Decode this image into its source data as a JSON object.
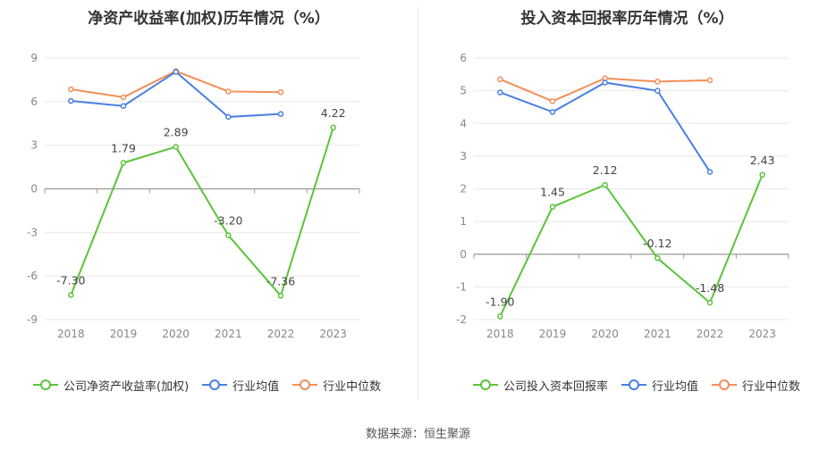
{
  "source": "数据来源：恒生聚源",
  "chart_data": [
    {
      "type": "line",
      "title": "净资产收益率(加权)历年情况（%）",
      "categories": [
        "2018",
        "2019",
        "2020",
        "2021",
        "2022",
        "2023"
      ],
      "yticks": [
        9,
        6,
        3,
        0,
        -3,
        -6,
        -9
      ],
      "ylim": [
        -9,
        9
      ],
      "grid": true,
      "legend_position": "bottom",
      "series": [
        {
          "name": "公司净资产收益率(加权)",
          "color": "#5ac43a",
          "values": [
            -7.3,
            1.79,
            2.89,
            -3.2,
            -7.36,
            4.22
          ],
          "labels": [
            "-7.30",
            "1.79",
            "2.89",
            "-3.20",
            "-7.36",
            "4.22"
          ]
        },
        {
          "name": "行业均值",
          "color": "#4a7fe0",
          "values": [
            6.05,
            5.7,
            8.05,
            4.95,
            5.15,
            null
          ]
        },
        {
          "name": "行业中位数",
          "color": "#f28e5a",
          "values": [
            6.85,
            6.3,
            8.1,
            6.7,
            6.65,
            null
          ]
        }
      ]
    },
    {
      "type": "line",
      "title": "投入资本回报率历年情况（%）",
      "categories": [
        "2018",
        "2019",
        "2020",
        "2021",
        "2022",
        "2023"
      ],
      "yticks": [
        6,
        5,
        4,
        3,
        2,
        1,
        0,
        -1,
        -2
      ],
      "ylim": [
        -2,
        6
      ],
      "grid": true,
      "legend_position": "bottom",
      "series": [
        {
          "name": "公司投入资本回报率",
          "color": "#5ac43a",
          "values": [
            -1.9,
            1.45,
            2.12,
            -0.12,
            -1.48,
            2.43
          ],
          "labels": [
            "-1.90",
            "1.45",
            "2.12",
            "-0.12",
            "-1.48",
            "2.43"
          ]
        },
        {
          "name": "行业均值",
          "color": "#4a7fe0",
          "values": [
            4.95,
            4.35,
            5.25,
            5.0,
            2.52,
            null
          ]
        },
        {
          "name": "行业中位数",
          "color": "#f28e5a",
          "values": [
            5.35,
            4.68,
            5.38,
            5.28,
            5.32,
            null
          ]
        }
      ]
    }
  ]
}
